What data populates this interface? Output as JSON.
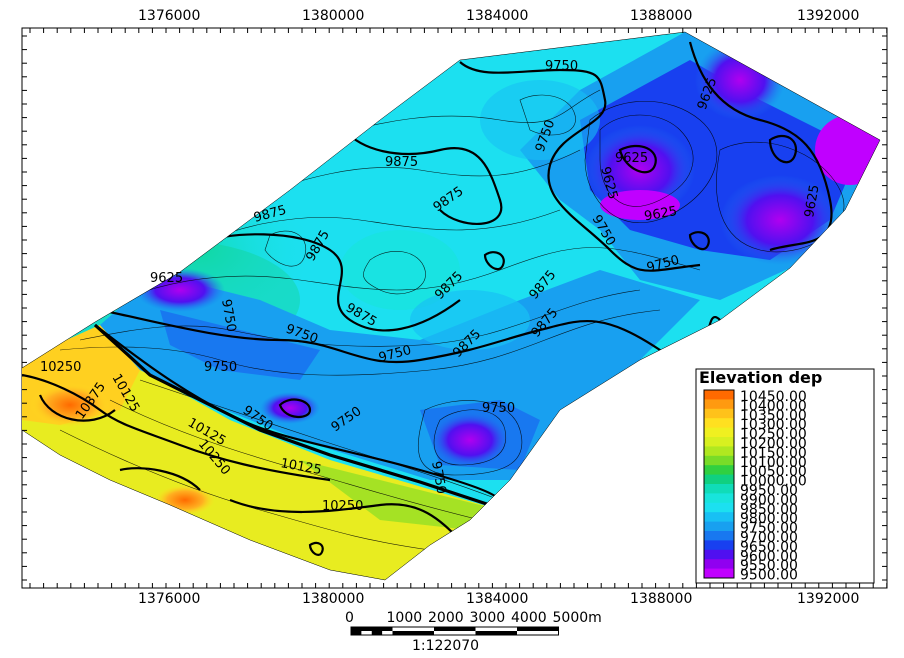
{
  "x_axis_ticks": [
    "1376000",
    "1380000",
    "1384000",
    "1388000",
    "1392000"
  ],
  "contour_labels": [
    "9750",
    "9875",
    "9625",
    "9750",
    "9875",
    "9875",
    "9875",
    "9625",
    "9750",
    "9875",
    "9750",
    "9875",
    "9625",
    "9625",
    "9625",
    "9750",
    "9750",
    "9875",
    "9875",
    "9750",
    "9875",
    "9750",
    "9750",
    "9750",
    "9750",
    "9750",
    "10250",
    "10125",
    "10125",
    "10250",
    "10125",
    "10250",
    "10375",
    "9625"
  ],
  "legend": {
    "title": "Elevation dep",
    "levels": [
      {
        "label": "10450.00",
        "color": "#ff6a00"
      },
      {
        "label": "10400.00",
        "color": "#ff9a10"
      },
      {
        "label": "10350.00",
        "color": "#ffc21a"
      },
      {
        "label": "10300.00",
        "color": "#ffe020"
      },
      {
        "label": "10250.00",
        "color": "#f0f020"
      },
      {
        "label": "10200.00",
        "color": "#d8f020"
      },
      {
        "label": "10150.00",
        "color": "#b0e820"
      },
      {
        "label": "10100.00",
        "color": "#78dc28"
      },
      {
        "label": "10050.00",
        "color": "#30d040"
      },
      {
        "label": "10000.00",
        "color": "#10d080"
      },
      {
        "label": "9950.00",
        "color": "#10dcb8"
      },
      {
        "label": "9900.00",
        "color": "#18e4dc"
      },
      {
        "label": "9850.00",
        "color": "#1ce0f0"
      },
      {
        "label": "9800.00",
        "color": "#18c0f4"
      },
      {
        "label": "9750.00",
        "color": "#18a0f0"
      },
      {
        "label": "9700.00",
        "color": "#1878f0"
      },
      {
        "label": "9650.00",
        "color": "#1840f0"
      },
      {
        "label": "9600.00",
        "color": "#5010f0"
      },
      {
        "label": "9550.00",
        "color": "#9000f0"
      },
      {
        "label": "9500.00",
        "color": "#c000ff"
      }
    ]
  },
  "scale_bar": {
    "labels": [
      "0",
      "1000",
      "2000",
      "3000",
      "4000",
      "5000m"
    ],
    "ratio": "1:122070"
  }
}
